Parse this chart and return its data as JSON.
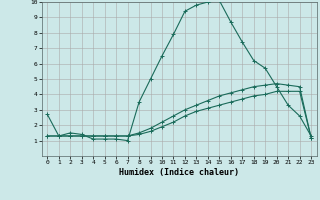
{
  "xlabel": "Humidex (Indice chaleur)",
  "background_color": "#cce8e8",
  "grid_color": "#aaaaaa",
  "line_color": "#1a6b5a",
  "xlim": [
    -0.5,
    23.5
  ],
  "ylim": [
    0,
    10
  ],
  "xticks": [
    0,
    1,
    2,
    3,
    4,
    5,
    6,
    7,
    8,
    9,
    10,
    11,
    12,
    13,
    14,
    15,
    16,
    17,
    18,
    19,
    20,
    21,
    22,
    23
  ],
  "yticks": [
    1,
    2,
    3,
    4,
    5,
    6,
    7,
    8,
    9,
    10
  ],
  "line1_x": [
    0,
    1,
    2,
    3,
    4,
    5,
    6,
    7,
    8,
    9,
    10,
    11,
    12,
    13,
    14,
    15,
    16,
    17,
    18,
    19,
    20,
    21,
    22,
    23
  ],
  "line1_y": [
    2.7,
    1.3,
    1.5,
    1.4,
    1.1,
    1.1,
    1.1,
    1.0,
    3.5,
    5.0,
    6.5,
    7.9,
    9.4,
    9.8,
    10.0,
    10.1,
    8.7,
    7.4,
    6.2,
    5.7,
    4.5,
    3.3,
    2.6,
    1.3
  ],
  "line2_x": [
    0,
    1,
    2,
    3,
    4,
    5,
    6,
    7,
    8,
    9,
    10,
    11,
    12,
    13,
    14,
    15,
    16,
    17,
    18,
    19,
    20,
    21,
    22,
    23
  ],
  "line2_y": [
    1.3,
    1.3,
    1.3,
    1.3,
    1.3,
    1.3,
    1.3,
    1.3,
    1.5,
    1.8,
    2.2,
    2.6,
    3.0,
    3.3,
    3.6,
    3.9,
    4.1,
    4.3,
    4.5,
    4.6,
    4.7,
    4.6,
    4.5,
    1.2
  ],
  "line3_x": [
    0,
    1,
    2,
    3,
    4,
    5,
    6,
    7,
    8,
    9,
    10,
    11,
    12,
    13,
    14,
    15,
    16,
    17,
    18,
    19,
    20,
    21,
    22,
    23
  ],
  "line3_y": [
    1.3,
    1.3,
    1.3,
    1.3,
    1.3,
    1.3,
    1.3,
    1.3,
    1.4,
    1.6,
    1.9,
    2.2,
    2.6,
    2.9,
    3.1,
    3.3,
    3.5,
    3.7,
    3.9,
    4.0,
    4.2,
    4.2,
    4.2,
    1.2
  ]
}
